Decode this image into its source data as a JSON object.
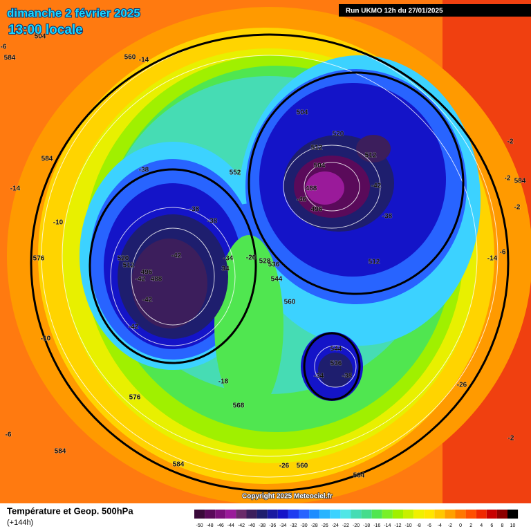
{
  "header": {
    "title": "dimanche 2 février 2025",
    "subtitle": "13:00 locale",
    "run": "Run UKMO 12h du 27/01/2025"
  },
  "map": {
    "labels": [
      584,
      -6,
      560,
      -14,
      584,
      -14,
      -10,
      520,
      512,
      496,
      488,
      -42,
      -42,
      -42,
      -42,
      -38,
      -38,
      -38,
      552,
      504,
      520,
      512,
      512,
      504,
      488,
      -46,
      496,
      -42,
      -38,
      512,
      -34,
      34,
      -26,
      528,
      536,
      544,
      560,
      -10,
      -18,
      576,
      568,
      544,
      536,
      -34,
      -38,
      -26,
      -6,
      584,
      584,
      -26,
      560,
      584,
      -2,
      -2,
      -2,
      584,
      -2,
      -6,
      -14,
      576,
      504
    ]
  },
  "footer": {
    "copyright": "Copyright 2025 Meteociel.fr",
    "legend_title": "Température et Geop. 500hPa",
    "lead": "(+144h)"
  },
  "scale": {
    "values": [
      -50,
      -48,
      -46,
      -44,
      -42,
      -40,
      -38,
      -36,
      -34,
      -32,
      -30,
      -28,
      -26,
      -24,
      -22,
      -20,
      -18,
      -16,
      -14,
      -12,
      -10,
      -8,
      -6,
      -4,
      -2,
      0,
      2,
      4,
      6,
      8,
      10
    ],
    "colors": [
      "#3a0a3a",
      "#5a0a5a",
      "#7a107a",
      "#9a1a9a",
      "#6a2a6a",
      "#3c1e5c",
      "#1e1e6e",
      "#1a1aa0",
      "#1414c8",
      "#1e3cf0",
      "#2864ff",
      "#1e8cff",
      "#28b4ff",
      "#3cd2ff",
      "#50e6e6",
      "#46dcb4",
      "#46dc8c",
      "#50e650",
      "#78f028",
      "#a0f000",
      "#c8f000",
      "#f0f000",
      "#ffe600",
      "#ffc800",
      "#ffa000",
      "#ff7800",
      "#ff5000",
      "#f02800",
      "#c80000",
      "#8c0000",
      "#000000"
    ]
  }
}
